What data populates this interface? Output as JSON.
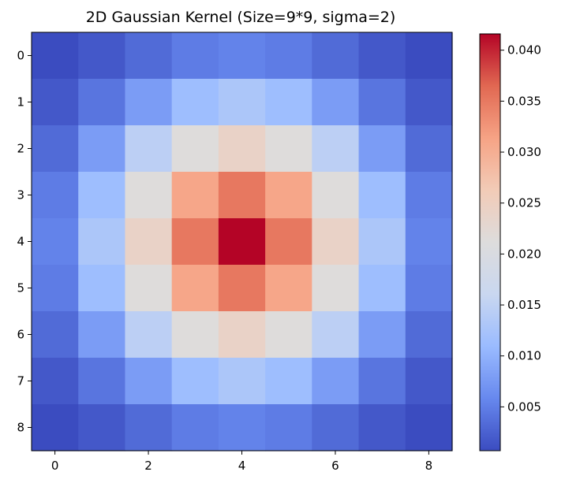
{
  "chart_data": {
    "type": "heatmap",
    "title": "2D Gaussian Kernel (Size=9*9, sigma=2)",
    "colormap": "coolwarm",
    "x_ticks": [
      "0",
      "2",
      "4",
      "6",
      "8"
    ],
    "y_ticks": [
      "0",
      "1",
      "2",
      "3",
      "4",
      "5",
      "6",
      "7",
      "8"
    ],
    "x_tick_values": [
      0,
      2,
      4,
      6,
      8
    ],
    "y_tick_values": [
      0,
      1,
      2,
      3,
      4,
      5,
      6,
      7,
      8
    ],
    "colorbar_ticks": [
      "0.005",
      "0.010",
      "0.015",
      "0.020",
      "0.025",
      "0.030",
      "0.035",
      "0.040"
    ],
    "colorbar_tick_values": [
      0.005,
      0.01,
      0.015,
      0.02,
      0.025,
      0.03,
      0.035,
      0.04
    ],
    "value_range": [
      0.0007,
      0.0416
    ],
    "rows": 9,
    "cols": 9,
    "grid": false,
    "values": [
      [
        0.0007,
        0.0017,
        0.0033,
        0.0048,
        0.0054,
        0.0048,
        0.0033,
        0.0017,
        0.0007
      ],
      [
        0.0017,
        0.0042,
        0.0078,
        0.0114,
        0.0129,
        0.0114,
        0.0078,
        0.0042,
        0.0017
      ],
      [
        0.0033,
        0.0078,
        0.0146,
        0.0213,
        0.0241,
        0.0213,
        0.0146,
        0.0078,
        0.0033
      ],
      [
        0.0048,
        0.0114,
        0.0213,
        0.031,
        0.0351,
        0.031,
        0.0213,
        0.0114,
        0.0048
      ],
      [
        0.0054,
        0.0129,
        0.0241,
        0.0351,
        0.0416,
        0.0351,
        0.0241,
        0.0129,
        0.0054
      ],
      [
        0.0048,
        0.0114,
        0.0213,
        0.031,
        0.0351,
        0.031,
        0.0213,
        0.0114,
        0.0048
      ],
      [
        0.0033,
        0.0078,
        0.0146,
        0.0213,
        0.0241,
        0.0213,
        0.0146,
        0.0078,
        0.0033
      ],
      [
        0.0017,
        0.0042,
        0.0078,
        0.0114,
        0.0129,
        0.0114,
        0.0078,
        0.0042,
        0.0017
      ],
      [
        0.0007,
        0.0017,
        0.0033,
        0.0048,
        0.0054,
        0.0048,
        0.0033,
        0.0017,
        0.0007
      ]
    ],
    "colormap_stops": [
      "#3b4cc0",
      "#6788ee",
      "#9abbff",
      "#c9d7f0",
      "#dddcdc",
      "#f2cbb7",
      "#f6a385",
      "#e16852",
      "#b40426"
    ]
  }
}
